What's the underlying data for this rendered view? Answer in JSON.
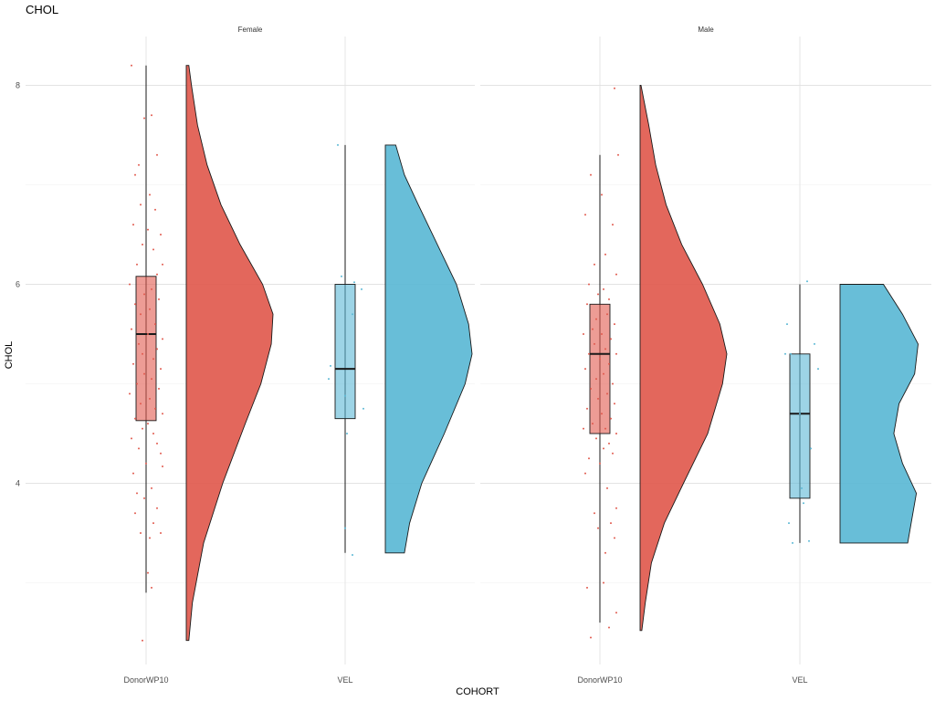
{
  "chart_data": {
    "type": "raincloud",
    "title": "CHOL",
    "xlabel": "COHORT",
    "ylabel": "CHOL",
    "ylim": [
      2.3,
      8.45
    ],
    "y_ticks": [
      4,
      6,
      8
    ],
    "grid": true,
    "categories": [
      "DonorWP10",
      "VEL"
    ],
    "colors": {
      "DonorWP10": "#E15A4E",
      "VEL": "#5BB8D5"
    },
    "panels": [
      {
        "facet": "Female",
        "groups": [
          {
            "cohort": "DonorWP10",
            "box": {
              "min": 2.9,
              "q1": 4.63,
              "median": 5.5,
              "q3": 6.08,
              "max": 8.2
            },
            "violin_range": [
              2.42,
              8.2
            ],
            "density": [
              [
                2.42,
                0.03
              ],
              [
                2.8,
                0.07
              ],
              [
                3.4,
                0.2
              ],
              [
                4.0,
                0.42
              ],
              [
                4.6,
                0.68
              ],
              [
                5.0,
                0.86
              ],
              [
                5.4,
                0.98
              ],
              [
                5.7,
                1.0
              ],
              [
                6.0,
                0.88
              ],
              [
                6.4,
                0.62
              ],
              [
                6.8,
                0.4
              ],
              [
                7.2,
                0.24
              ],
              [
                7.6,
                0.13
              ],
              [
                8.0,
                0.06
              ],
              [
                8.2,
                0.03
              ]
            ],
            "points": [
              [
                -0.8,
                8.2
              ],
              [
                0.3,
                7.7
              ],
              [
                -0.1,
                7.67
              ],
              [
                0.6,
                7.3
              ],
              [
                -0.4,
                7.2
              ],
              [
                -0.6,
                7.1
              ],
              [
                0.2,
                6.9
              ],
              [
                -0.3,
                6.8
              ],
              [
                0.5,
                6.75
              ],
              [
                -0.7,
                6.6
              ],
              [
                0.1,
                6.55
              ],
              [
                0.8,
                6.5
              ],
              [
                -0.2,
                6.4
              ],
              [
                0.4,
                6.35
              ],
              [
                -0.5,
                6.2
              ],
              [
                0.9,
                6.2
              ],
              [
                0.6,
                6.1
              ],
              [
                -0.9,
                6.0
              ],
              [
                0.3,
                5.95
              ],
              [
                -0.1,
                5.9
              ],
              [
                0.7,
                5.85
              ],
              [
                -0.6,
                5.8
              ],
              [
                0.2,
                5.75
              ],
              [
                -0.3,
                5.7
              ],
              [
                0.5,
                5.6
              ],
              [
                -0.8,
                5.55
              ],
              [
                0.1,
                5.5
              ],
              [
                0.9,
                5.45
              ],
              [
                -0.4,
                5.4
              ],
              [
                0.6,
                5.35
              ],
              [
                -0.2,
                5.3
              ],
              [
                0.4,
                5.25
              ],
              [
                -0.7,
                5.2
              ],
              [
                0.8,
                5.15
              ],
              [
                -0.1,
                5.1
              ],
              [
                0.3,
                5.05
              ],
              [
                -0.5,
                5.0
              ],
              [
                0.7,
                4.95
              ],
              [
                -0.9,
                4.9
              ],
              [
                0.2,
                4.85
              ],
              [
                -0.3,
                4.8
              ],
              [
                0.5,
                4.75
              ],
              [
                0.9,
                4.7
              ],
              [
                -0.6,
                4.65
              ],
              [
                0.1,
                4.6
              ],
              [
                -0.2,
                4.55
              ],
              [
                0.4,
                4.5
              ],
              [
                -0.8,
                4.45
              ],
              [
                0.6,
                4.4
              ],
              [
                -0.4,
                4.35
              ],
              [
                0.8,
                4.3
              ],
              [
                0.0,
                4.2
              ],
              [
                0.9,
                4.17
              ],
              [
                -0.7,
                4.1
              ],
              [
                0.3,
                3.95
              ],
              [
                -0.5,
                3.9
              ],
              [
                -0.1,
                3.85
              ],
              [
                0.6,
                3.75
              ],
              [
                -0.6,
                3.7
              ],
              [
                0.4,
                3.6
              ],
              [
                0.8,
                3.5
              ],
              [
                -0.3,
                3.5
              ],
              [
                0.2,
                3.45
              ],
              [
                0.1,
                3.1
              ],
              [
                0.3,
                2.95
              ],
              [
                -0.2,
                2.42
              ]
            ]
          },
          {
            "cohort": "VEL",
            "box": {
              "min": 3.3,
              "q1": 4.65,
              "median": 5.15,
              "q3": 6.0,
              "max": 7.4
            },
            "violin_range": [
              3.3,
              7.4
            ],
            "density": [
              [
                3.3,
                0.22
              ],
              [
                3.6,
                0.28
              ],
              [
                4.0,
                0.42
              ],
              [
                4.5,
                0.68
              ],
              [
                5.0,
                0.92
              ],
              [
                5.3,
                1.0
              ],
              [
                5.6,
                0.96
              ],
              [
                6.0,
                0.82
              ],
              [
                6.4,
                0.6
              ],
              [
                6.8,
                0.38
              ],
              [
                7.1,
                0.22
              ],
              [
                7.4,
                0.12
              ]
            ],
            "points": [
              [
                -0.4,
                7.4
              ],
              [
                0.5,
                6.02
              ],
              [
                0.9,
                5.95
              ],
              [
                -0.2,
                6.08
              ],
              [
                0.4,
                5.7
              ],
              [
                -0.8,
                5.18
              ],
              [
                -0.9,
                5.05
              ],
              [
                0.0,
                4.88
              ],
              [
                1.0,
                4.75
              ],
              [
                0.1,
                4.5
              ],
              [
                0.0,
                3.55
              ],
              [
                0.4,
                3.28
              ]
            ]
          }
        ]
      },
      {
        "facet": "Male",
        "groups": [
          {
            "cohort": "DonorWP10",
            "box": {
              "min": 2.6,
              "q1": 4.5,
              "median": 5.3,
              "q3": 5.8,
              "max": 7.3
            },
            "violin_range": [
              2.52,
              8.0
            ],
            "density": [
              [
                2.52,
                0.02
              ],
              [
                2.8,
                0.06
              ],
              [
                3.2,
                0.13
              ],
              [
                3.6,
                0.28
              ],
              [
                4.0,
                0.5
              ],
              [
                4.5,
                0.78
              ],
              [
                5.0,
                0.95
              ],
              [
                5.3,
                1.0
              ],
              [
                5.6,
                0.92
              ],
              [
                6.0,
                0.72
              ],
              [
                6.4,
                0.48
              ],
              [
                6.8,
                0.3
              ],
              [
                7.2,
                0.18
              ],
              [
                7.6,
                0.1
              ],
              [
                8.0,
                0.01
              ]
            ],
            "points": [
              [
                0.8,
                7.97
              ],
              [
                -0.5,
                7.1
              ],
              [
                1.0,
                7.3
              ],
              [
                0.1,
                6.9
              ],
              [
                -0.8,
                6.7
              ],
              [
                0.7,
                6.6
              ],
              [
                0.3,
                6.3
              ],
              [
                -0.3,
                6.2
              ],
              [
                0.9,
                6.1
              ],
              [
                -0.6,
                6.0
              ],
              [
                0.2,
                5.95
              ],
              [
                -0.1,
                5.9
              ],
              [
                0.5,
                5.85
              ],
              [
                -0.7,
                5.8
              ],
              [
                0.4,
                5.7
              ],
              [
                -0.2,
                5.65
              ],
              [
                0.8,
                5.6
              ],
              [
                -0.4,
                5.55
              ],
              [
                0.1,
                5.5
              ],
              [
                -0.9,
                5.5
              ],
              [
                0.6,
                5.45
              ],
              [
                -0.3,
                5.4
              ],
              [
                0.3,
                5.35
              ],
              [
                0.9,
                5.3
              ],
              [
                -0.6,
                5.3
              ],
              [
                0.0,
                5.25
              ],
              [
                0.5,
                5.2
              ],
              [
                -0.8,
                5.15
              ],
              [
                0.2,
                5.1
              ],
              [
                -0.2,
                5.05
              ],
              [
                0.7,
                5.0
              ],
              [
                -0.5,
                4.95
              ],
              [
                0.4,
                4.9
              ],
              [
                -0.1,
                4.85
              ],
              [
                0.8,
                4.8
              ],
              [
                -0.7,
                4.75
              ],
              [
                0.1,
                4.7
              ],
              [
                0.6,
                4.65
              ],
              [
                -0.4,
                4.6
              ],
              [
                0.3,
                4.55
              ],
              [
                -0.9,
                4.55
              ],
              [
                0.9,
                4.5
              ],
              [
                -0.2,
                4.45
              ],
              [
                0.5,
                4.4
              ],
              [
                0.2,
                4.35
              ],
              [
                0.7,
                4.3
              ],
              [
                -0.6,
                4.25
              ],
              [
                0.0,
                4.2
              ],
              [
                -0.8,
                4.1
              ],
              [
                0.4,
                3.95
              ],
              [
                0.9,
                3.75
              ],
              [
                -0.3,
                3.7
              ],
              [
                0.6,
                3.6
              ],
              [
                -0.1,
                3.55
              ],
              [
                0.8,
                3.45
              ],
              [
                0.3,
                3.3
              ],
              [
                -0.7,
                2.95
              ],
              [
                0.5,
                2.55
              ],
              [
                0.9,
                2.7
              ],
              [
                -0.5,
                2.45
              ],
              [
                0.2,
                3.0
              ]
            ]
          },
          {
            "cohort": "VEL",
            "box": {
              "min": 3.4,
              "q1": 3.85,
              "median": 4.7,
              "q3": 5.3,
              "max": 6.0
            },
            "violin_range": [
              3.4,
              6.0
            ],
            "density": [
              [
                3.4,
                0.78
              ],
              [
                3.6,
                0.82
              ],
              [
                3.9,
                0.88
              ],
              [
                4.2,
                0.72
              ],
              [
                4.5,
                0.62
              ],
              [
                4.8,
                0.68
              ],
              [
                5.1,
                0.86
              ],
              [
                5.4,
                0.9
              ],
              [
                5.7,
                0.72
              ],
              [
                6.0,
                0.5
              ]
            ],
            "points": [
              [
                -0.7,
                5.6
              ],
              [
                -0.8,
                5.3
              ],
              [
                -0.5,
                5.3
              ],
              [
                0.8,
                5.4
              ],
              [
                1.0,
                5.15
              ],
              [
                0.4,
                6.03
              ],
              [
                0.0,
                4.7
              ],
              [
                0.6,
                4.35
              ],
              [
                -0.6,
                3.6
              ],
              [
                -0.4,
                3.4
              ],
              [
                0.5,
                3.42
              ],
              [
                0.2,
                3.8
              ],
              [
                0.1,
                3.95
              ]
            ]
          }
        ]
      }
    ]
  }
}
